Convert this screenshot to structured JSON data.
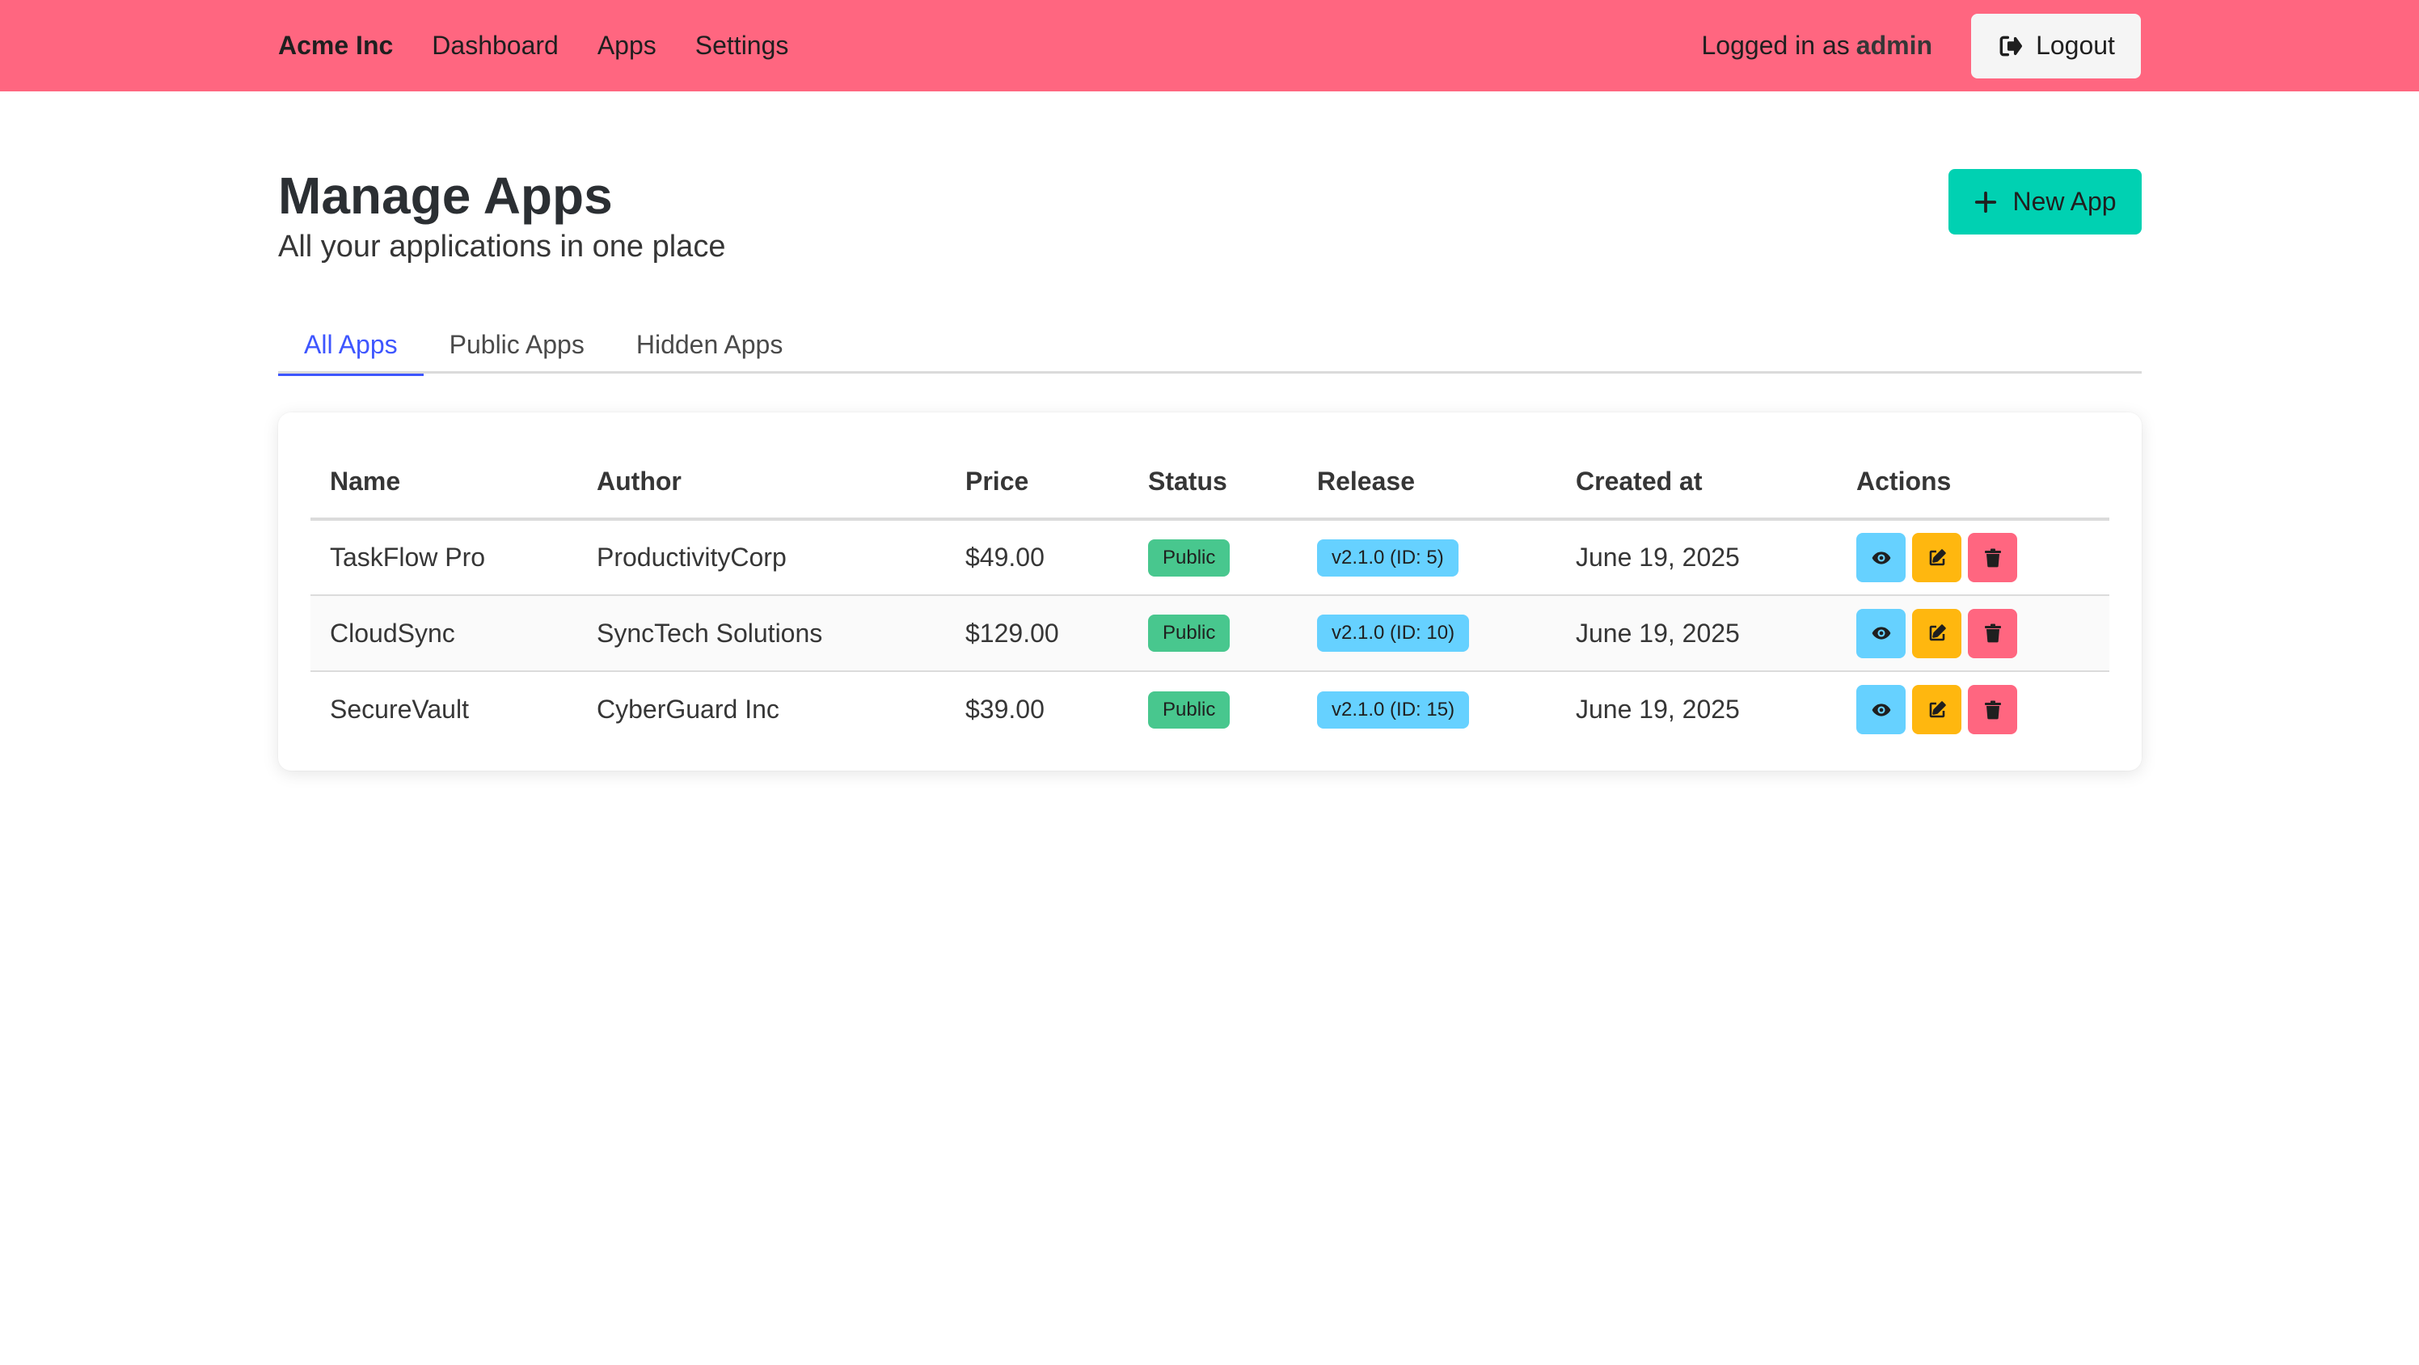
{
  "navbar": {
    "brand": "Acme Inc",
    "links": [
      "Dashboard",
      "Apps",
      "Settings"
    ],
    "logged_in_prefix": "Logged in as",
    "username": "admin",
    "logout_label": "Logout"
  },
  "header": {
    "title": "Manage Apps",
    "subtitle": "All your applications in one place",
    "new_app_label": "New App"
  },
  "tabs": [
    {
      "label": "All Apps",
      "active": true
    },
    {
      "label": "Public Apps",
      "active": false
    },
    {
      "label": "Hidden Apps",
      "active": false
    }
  ],
  "table": {
    "columns": [
      "Name",
      "Author",
      "Price",
      "Status",
      "Release",
      "Created at",
      "Actions"
    ],
    "rows": [
      {
        "name": "TaskFlow Pro",
        "author": "ProductivityCorp",
        "price": "$49.00",
        "status": "Public",
        "release": "v2.1.0 (ID: 5)",
        "created": "June 19, 2025"
      },
      {
        "name": "CloudSync",
        "author": "SyncTech Solutions",
        "price": "$129.00",
        "status": "Public",
        "release": "v2.1.0 (ID: 10)",
        "created": "June 19, 2025"
      },
      {
        "name": "SecureVault",
        "author": "CyberGuard Inc",
        "price": "$39.00",
        "status": "Public",
        "release": "v2.1.0 (ID: 15)",
        "created": "June 19, 2025"
      }
    ]
  },
  "icons": {
    "logout": "logout-icon",
    "new_app": "plus-icon",
    "view": "eye-icon",
    "edit": "edit-icon",
    "delete": "trash-icon"
  },
  "colors": {
    "navbar": "#ff6680",
    "primary": "#00d1b2",
    "link": "#3e56ff",
    "success": "#48c78e",
    "info": "#66d1ff",
    "warning": "#ffb70f",
    "danger": "#ff6680"
  }
}
